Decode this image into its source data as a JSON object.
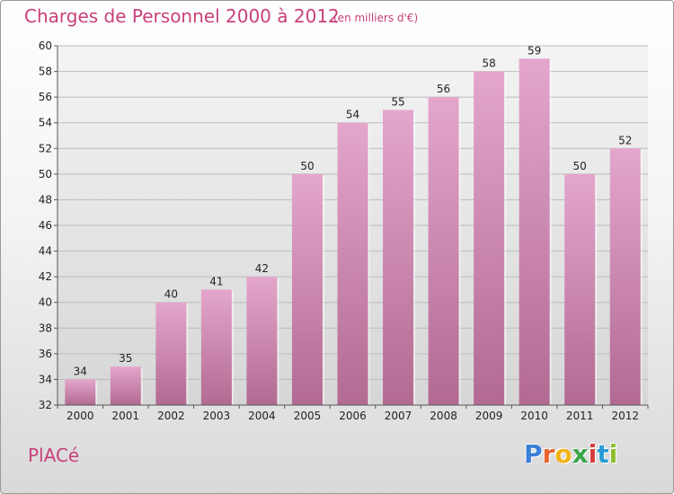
{
  "title": "Charges de Personnel 2000 à 2012",
  "subtitle": "(en milliers d'€)",
  "commune": "PlACé",
  "logo": {
    "letters": [
      "P",
      "r",
      "o",
      "x",
      "i",
      "t",
      "i"
    ],
    "colors": [
      "#3a7fd5",
      "#e8632b",
      "#f2b319",
      "#3aa64a",
      "#d93a3a",
      "#2a9ad6",
      "#8bbf2b"
    ]
  },
  "colors": {
    "bar": "#d48fb6",
    "accent": "#c8407a",
    "grid": "#bbbbbb"
  },
  "chart_data": {
    "type": "bar",
    "categories": [
      "2000",
      "2001",
      "2002",
      "2003",
      "2004",
      "2005",
      "2006",
      "2007",
      "2008",
      "2009",
      "2010",
      "2011",
      "2012"
    ],
    "values": [
      34,
      35,
      40,
      41,
      42,
      50,
      54,
      55,
      56,
      58,
      59,
      50,
      52
    ],
    "ylim": [
      32,
      60
    ],
    "yticks": [
      32,
      34,
      36,
      38,
      40,
      42,
      44,
      46,
      48,
      50,
      52,
      54,
      56,
      58,
      60
    ],
    "grid": true,
    "xlabel": "",
    "ylabel": ""
  }
}
